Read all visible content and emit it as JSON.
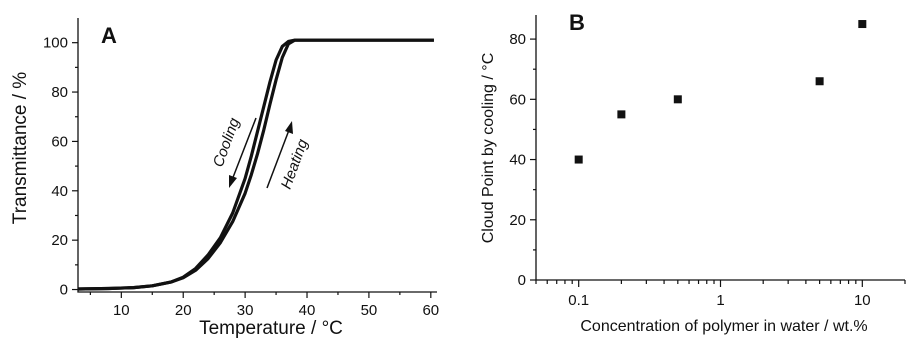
{
  "chart_data": [
    {
      "panel": "A",
      "type": "line",
      "xlabel": "Temperature / °C",
      "ylabel": "Transmittance / %",
      "xlim": [
        3,
        61
      ],
      "ylim": [
        -1,
        110
      ],
      "xticks": [
        10,
        20,
        30,
        40,
        50,
        60
      ],
      "yticks": [
        0,
        20,
        40,
        60,
        80,
        100
      ],
      "annotations": [
        {
          "text": "Cooling",
          "direction": "down"
        },
        {
          "text": "Heating",
          "direction": "up"
        }
      ],
      "series": [
        {
          "x": [
            3,
            8,
            12,
            15,
            18,
            20,
            22,
            24,
            26,
            28,
            30,
            31,
            32,
            33,
            34,
            35,
            36,
            37,
            38,
            40,
            45,
            50,
            55,
            60.5
          ],
          "y": [
            0.2,
            0.4,
            0.8,
            1.5,
            3,
            5,
            8.5,
            14,
            21,
            31,
            45,
            54,
            64,
            74,
            84,
            93,
            98.5,
            100.5,
            101,
            101,
            101,
            101,
            101,
            101
          ]
        },
        {
          "x": [
            3,
            8,
            12,
            15,
            18,
            20,
            22,
            24,
            26,
            28,
            30,
            31,
            32,
            33,
            34,
            35,
            36,
            37,
            38,
            40,
            45,
            50,
            55,
            60.5
          ],
          "y": [
            0.2,
            0.4,
            0.8,
            1.5,
            3,
            4.8,
            7.8,
            12.5,
            19,
            27.5,
            39,
            46.5,
            55,
            64.5,
            75,
            85,
            94,
            99.5,
            101,
            101,
            101,
            101,
            101,
            101
          ]
        }
      ]
    },
    {
      "panel": "B",
      "type": "scatter",
      "xlabel": "Concentration of polymer in water / wt.%",
      "ylabel": "Cloud Point by cooling / °C",
      "xscale": "log",
      "xlim": [
        0.05,
        20
      ],
      "ylim": [
        0,
        88
      ],
      "xticks": [
        0.1,
        1,
        10
      ],
      "xtick_labels": [
        "0.1",
        "1",
        "10"
      ],
      "yticks": [
        0,
        20,
        40,
        60,
        80
      ],
      "x": [
        0.1,
        0.2,
        0.5,
        5,
        10
      ],
      "y": [
        40,
        55,
        60,
        66,
        85
      ]
    }
  ]
}
